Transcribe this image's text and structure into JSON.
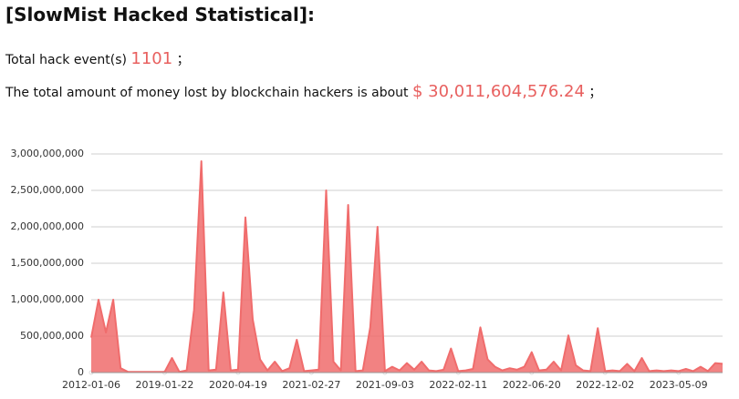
{
  "header": {
    "title": "[SlowMist Hacked Statistical]:"
  },
  "stats": [
    {
      "label": "Total hack event(s)",
      "value": "1101",
      "suffix": "；"
    },
    {
      "label": "The total amount of money lost by blockchain hackers is about",
      "value": "$ 30,011,604,576.24",
      "suffix": "；"
    }
  ],
  "chart_data": {
    "type": "area",
    "color": "#f06c6c",
    "grid": true,
    "categories": [
      "2012-01-06",
      null,
      null,
      null,
      null,
      null,
      null,
      null,
      null,
      null,
      "2019-01-22",
      null,
      null,
      null,
      null,
      null,
      null,
      null,
      null,
      null,
      "2020-04-19",
      null,
      null,
      null,
      null,
      null,
      null,
      null,
      null,
      null,
      "2021-02-27",
      null,
      null,
      null,
      null,
      null,
      null,
      null,
      null,
      null,
      "2021-09-03",
      null,
      null,
      null,
      null,
      null,
      null,
      null,
      null,
      null,
      "2022-02-11",
      null,
      null,
      null,
      null,
      null,
      null,
      null,
      null,
      null,
      "2022-06-20",
      null,
      null,
      null,
      null,
      null,
      null,
      null,
      null,
      null,
      "2022-12-02",
      null,
      null,
      null,
      null,
      null,
      null,
      null,
      null,
      null,
      "2023-05-09",
      null,
      null,
      null,
      null,
      null,
      null
    ],
    "values": [
      480000000,
      1000000000,
      550000000,
      1000000000,
      60000000,
      10000000,
      10000000,
      10000000,
      10000000,
      10000000,
      10000000,
      200000000,
      10000000,
      30000000,
      860000000,
      2900000000,
      30000000,
      40000000,
      1100000000,
      30000000,
      40000000,
      2130000000,
      730000000,
      180000000,
      30000000,
      150000000,
      20000000,
      60000000,
      450000000,
      20000000,
      30000000,
      40000000,
      2500000000,
      150000000,
      30000000,
      2300000000,
      20000000,
      30000000,
      620000000,
      2000000000,
      20000000,
      80000000,
      30000000,
      130000000,
      40000000,
      150000000,
      30000000,
      20000000,
      40000000,
      330000000,
      20000000,
      30000000,
      50000000,
      620000000,
      180000000,
      80000000,
      30000000,
      60000000,
      40000000,
      80000000,
      280000000,
      30000000,
      40000000,
      150000000,
      30000000,
      510000000,
      100000000,
      30000000,
      20000000,
      610000000,
      20000000,
      30000000,
      20000000,
      120000000,
      20000000,
      200000000,
      20000000,
      30000000,
      20000000,
      30000000,
      20000000,
      50000000,
      20000000,
      80000000,
      20000000,
      130000000,
      120000000
    ],
    "ylim": [
      0,
      3000000000
    ],
    "yticks": [
      0,
      {
        "value": 500000000,
        "label": "500,000,000"
      },
      {
        "value": 1000000000,
        "label": "1,000,000,000"
      },
      {
        "value": 1500000000,
        "label": "1,500,000,000"
      },
      {
        "value": 2000000000,
        "label": "2,000,000,000"
      },
      {
        "value": 2500000000,
        "label": "2,500,000,000"
      },
      {
        "value": 3000000000,
        "label": "3,000,000,000"
      }
    ]
  }
}
